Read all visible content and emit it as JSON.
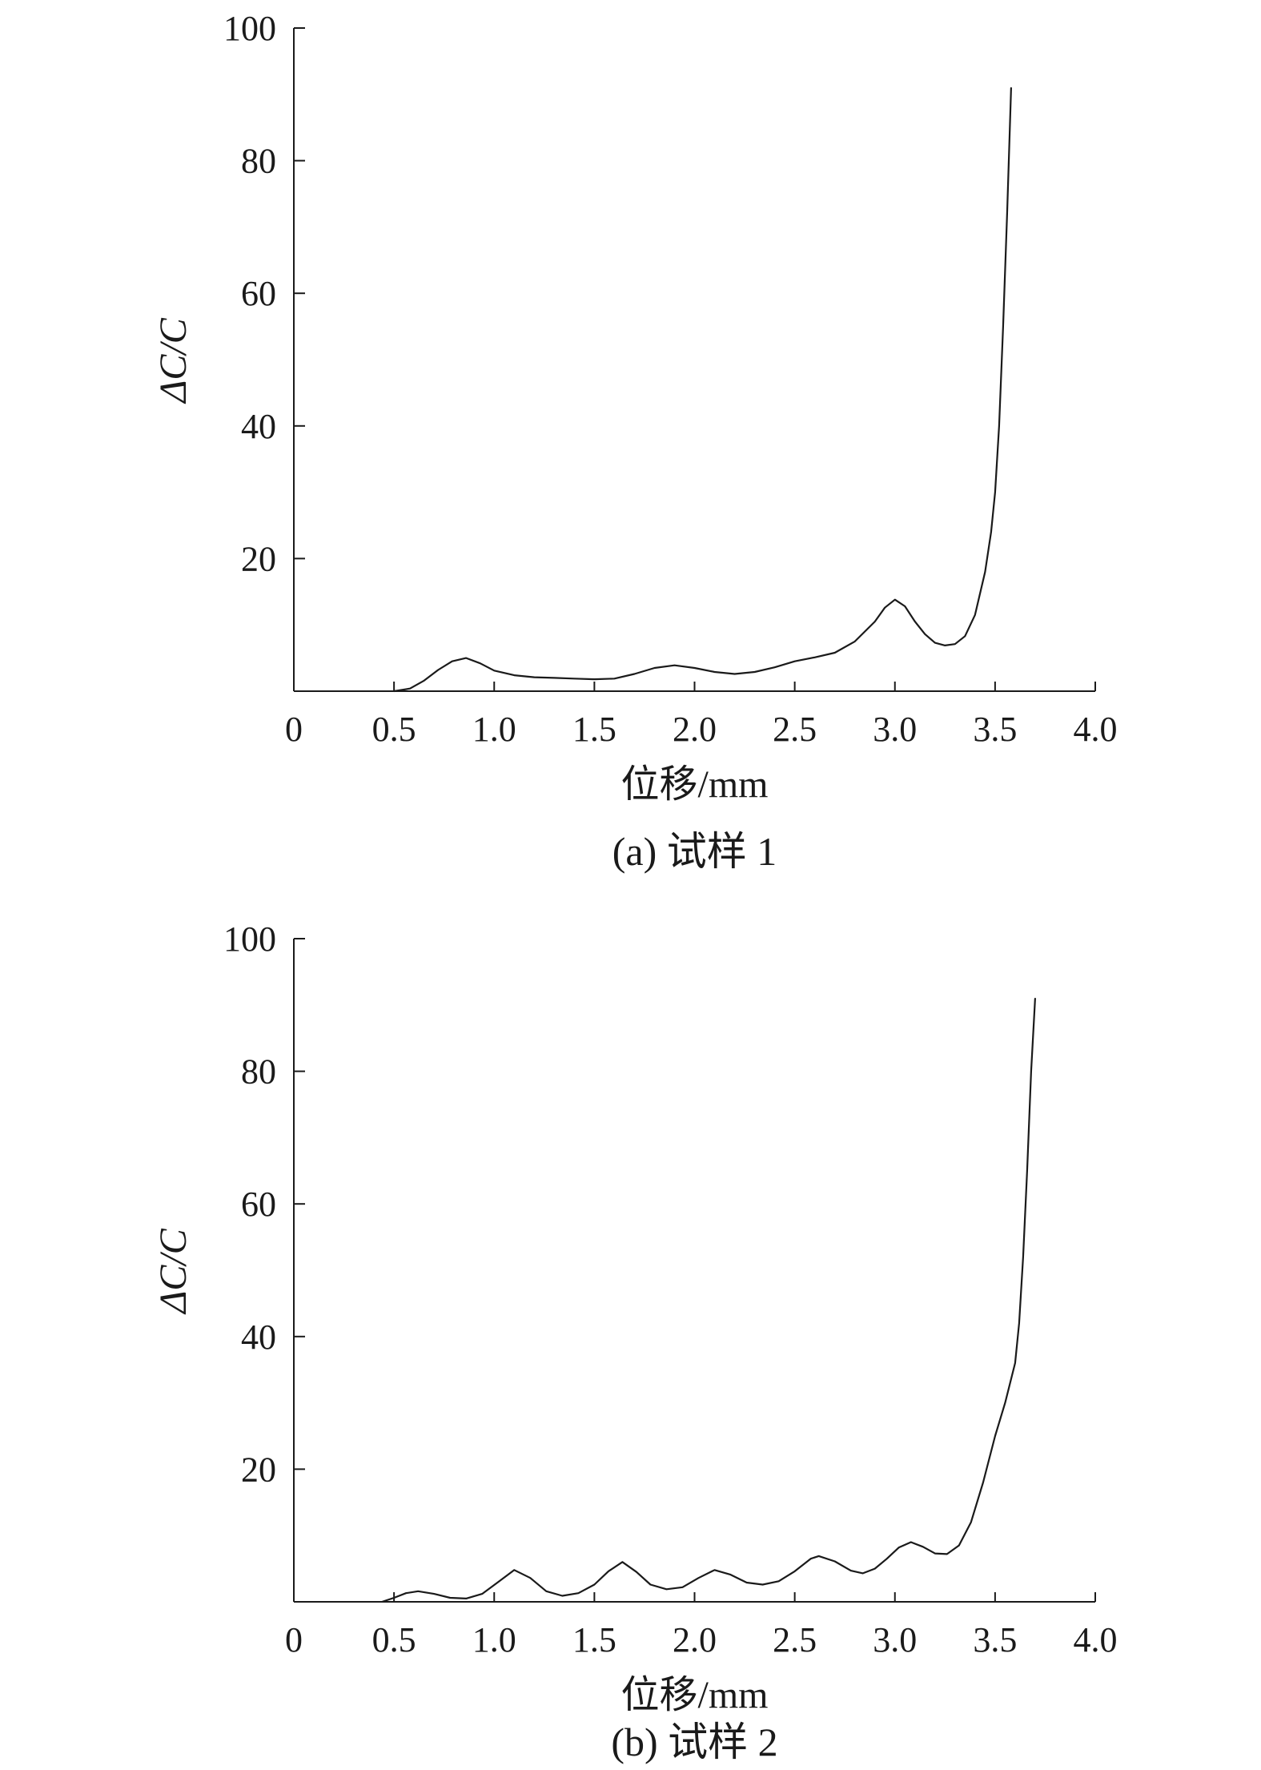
{
  "chart_data": [
    {
      "type": "line",
      "caption": "(a) 试样 1",
      "xlabel": "位移/mm",
      "ylabel": "ΔC/C",
      "xlim": [
        0,
        4.0
      ],
      "ylim": [
        0,
        100
      ],
      "xticks": [
        "0",
        "0.5",
        "1.0",
        "1.5",
        "2.0",
        "2.5",
        "3.0",
        "3.5",
        "4.0"
      ],
      "yticks": [
        "20",
        "40",
        "60",
        "80",
        "100"
      ],
      "grid": false,
      "series": [
        {
          "x": [
            0.5,
            0.58,
            0.65,
            0.72,
            0.79,
            0.86,
            0.93,
            1.0,
            1.1,
            1.2,
            1.3,
            1.4,
            1.5,
            1.6,
            1.7,
            1.8,
            1.9,
            2.0,
            2.1,
            2.2,
            2.3,
            2.4,
            2.5,
            2.6,
            2.7,
            2.8,
            2.9,
            2.95,
            3.0,
            3.05,
            3.1,
            3.15,
            3.2,
            3.25,
            3.3,
            3.35,
            3.4,
            3.45,
            3.48,
            3.5,
            3.52,
            3.54,
            3.56,
            3.58
          ],
          "y": [
            0,
            0.4,
            1.6,
            3.2,
            4.5,
            5.0,
            4.2,
            3.1,
            2.4,
            2.1,
            2.0,
            1.9,
            1.8,
            1.9,
            2.6,
            3.5,
            3.9,
            3.5,
            2.9,
            2.6,
            2.9,
            3.6,
            4.5,
            5.1,
            5.8,
            7.5,
            10.5,
            12.6,
            13.8,
            12.8,
            10.5,
            8.6,
            7.3,
            6.9,
            7.1,
            8.3,
            11.5,
            18.0,
            24.0,
            30.0,
            40.0,
            55.0,
            72.0,
            91.0
          ]
        }
      ]
    },
    {
      "type": "line",
      "caption": "(b) 试样 2",
      "xlabel": "位移/mm",
      "ylabel": "ΔC/C",
      "xlim": [
        0,
        4.0
      ],
      "ylim": [
        0,
        100
      ],
      "xticks": [
        "0",
        "0.5",
        "1.0",
        "1.5",
        "2.0",
        "2.5",
        "3.0",
        "3.5",
        "4.0"
      ],
      "yticks": [
        "20",
        "40",
        "60",
        "80",
        "100"
      ],
      "grid": false,
      "series": [
        {
          "x": [
            0.44,
            0.5,
            0.56,
            0.62,
            0.7,
            0.78,
            0.86,
            0.94,
            1.02,
            1.1,
            1.18,
            1.26,
            1.34,
            1.42,
            1.5,
            1.57,
            1.64,
            1.71,
            1.78,
            1.86,
            1.94,
            2.02,
            2.1,
            2.18,
            2.26,
            2.34,
            2.42,
            2.5,
            2.58,
            2.62,
            2.7,
            2.78,
            2.84,
            2.9,
            2.96,
            3.02,
            3.08,
            3.14,
            3.2,
            3.26,
            3.32,
            3.38,
            3.44,
            3.5,
            3.55,
            3.6,
            3.62,
            3.64,
            3.66,
            3.68,
            3.7
          ],
          "y": [
            0,
            0.6,
            1.3,
            1.6,
            1.2,
            0.6,
            0.5,
            1.2,
            3.0,
            4.8,
            3.6,
            1.6,
            0.9,
            1.3,
            2.6,
            4.6,
            6.0,
            4.5,
            2.6,
            1.9,
            2.2,
            3.6,
            4.8,
            4.1,
            2.9,
            2.6,
            3.1,
            4.6,
            6.5,
            6.9,
            6.1,
            4.7,
            4.3,
            5.0,
            6.5,
            8.2,
            9.0,
            8.3,
            7.3,
            7.2,
            8.5,
            12.0,
            18.0,
            25.0,
            30.0,
            36.0,
            42.0,
            52.0,
            65.0,
            80.0,
            91.0
          ]
        }
      ]
    }
  ]
}
